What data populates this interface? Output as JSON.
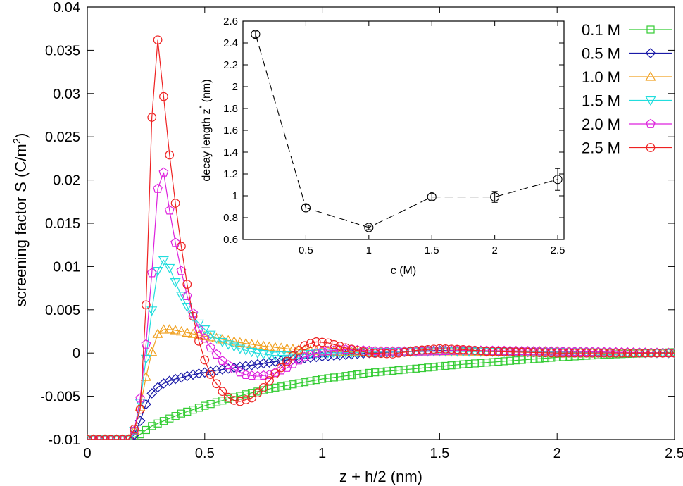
{
  "chart_data": [
    {
      "type": "line",
      "title": "",
      "xlabel": "z + h/2 (nm)",
      "ylabel_text": "screening factor S (C/m",
      "ylabel_sup": "2",
      "ylabel_end": ")",
      "xlim": [
        0,
        2.5
      ],
      "ylim": [
        -0.01,
        0.04
      ],
      "xticks": [
        0,
        0.5,
        1,
        1.5,
        2,
        2.5
      ],
      "xtick_labels": [
        "0",
        "0.5",
        "1",
        "1.5",
        "2",
        "2.5"
      ],
      "yticks": [
        -0.01,
        -0.005,
        0,
        0.005,
        0.01,
        0.015,
        0.02,
        0.025,
        0.03,
        0.035,
        0.04
      ],
      "ytick_labels": [
        "-0.01",
        "-0.005",
        "0",
        "0.005",
        "0.01",
        "0.015",
        "0.02",
        "0.025",
        "0.03",
        "0.035",
        "0.04"
      ],
      "legend_position": "top-right",
      "series": [
        {
          "name": "0.1 M",
          "color": "#33cc33",
          "marker": "square",
          "anchors": [
            [
              0,
              -0.01
            ],
            [
              0.18,
              -0.01
            ],
            [
              0.22,
              -0.0095
            ],
            [
              0.27,
              -0.0085
            ],
            [
              0.33,
              -0.0078
            ],
            [
              0.4,
              -0.007
            ],
            [
              0.5,
              -0.0061
            ],
            [
              0.6,
              -0.0053
            ],
            [
              0.7,
              -0.0046
            ],
            [
              0.8,
              -0.004
            ],
            [
              0.9,
              -0.0035
            ],
            [
              1.0,
              -0.003
            ],
            [
              1.2,
              -0.0023
            ],
            [
              1.4,
              -0.0018
            ],
            [
              1.6,
              -0.0013
            ],
            [
              1.8,
              -0.0009
            ],
            [
              2.0,
              -0.0005
            ],
            [
              2.2,
              -0.0002
            ],
            [
              2.4,
              0.0
            ],
            [
              2.5,
              0.0001
            ]
          ]
        },
        {
          "name": "0.5 M",
          "color": "#1a1aa8",
          "marker": "diamond",
          "anchors": [
            [
              0,
              -0.01
            ],
            [
              0.18,
              -0.01
            ],
            [
              0.21,
              -0.0092
            ],
            [
              0.24,
              -0.0065
            ],
            [
              0.27,
              -0.0048
            ],
            [
              0.31,
              -0.0037
            ],
            [
              0.36,
              -0.0031
            ],
            [
              0.45,
              -0.0025
            ],
            [
              0.55,
              -0.002
            ],
            [
              0.65,
              -0.0016
            ],
            [
              0.75,
              -0.0012
            ],
            [
              0.85,
              -0.0008
            ],
            [
              1.0,
              -0.0004
            ],
            [
              1.2,
              0.0
            ],
            [
              1.5,
              0.0003
            ],
            [
              1.8,
              0.0002
            ],
            [
              2.1,
              0.0001
            ],
            [
              2.5,
              0.0
            ]
          ]
        },
        {
          "name": "1.0 M",
          "color": "#f0a020",
          "marker": "triangle-up",
          "anchors": [
            [
              0,
              -0.01
            ],
            [
              0.18,
              -0.01
            ],
            [
              0.21,
              -0.0085
            ],
            [
              0.24,
              -0.004
            ],
            [
              0.27,
              -0.0003
            ],
            [
              0.3,
              0.0022
            ],
            [
              0.33,
              0.0028
            ],
            [
              0.38,
              0.0026
            ],
            [
              0.45,
              0.0022
            ],
            [
              0.55,
              0.0017
            ],
            [
              0.65,
              0.0012
            ],
            [
              0.75,
              0.0008
            ],
            [
              0.85,
              0.0005
            ],
            [
              1.0,
              0.0002
            ],
            [
              1.2,
              0.0001
            ],
            [
              1.5,
              0.0002
            ],
            [
              2.0,
              0.0001
            ],
            [
              2.5,
              0.0
            ]
          ]
        },
        {
          "name": "1.5 M",
          "color": "#22dddd",
          "marker": "triangle-down",
          "anchors": [
            [
              0,
              -0.01
            ],
            [
              0.18,
              -0.01
            ],
            [
              0.21,
              -0.0085
            ],
            [
              0.24,
              -0.003
            ],
            [
              0.27,
              0.004
            ],
            [
              0.3,
              0.0095
            ],
            [
              0.32,
              0.0108
            ],
            [
              0.34,
              0.0105
            ],
            [
              0.37,
              0.0085
            ],
            [
              0.41,
              0.006
            ],
            [
              0.46,
              0.0038
            ],
            [
              0.52,
              0.0022
            ],
            [
              0.58,
              0.0012
            ],
            [
              0.65,
              0.0005
            ],
            [
              0.72,
              0.0
            ],
            [
              0.8,
              -0.0003
            ],
            [
              0.9,
              -0.0002
            ],
            [
              1.0,
              0.0
            ],
            [
              1.2,
              0.0001
            ],
            [
              1.5,
              0.0002
            ],
            [
              2.0,
              0.0001
            ],
            [
              2.5,
              0.0
            ]
          ]
        },
        {
          "name": "2.0 M",
          "color": "#dd22dd",
          "marker": "pentagon",
          "anchors": [
            [
              0,
              -0.01
            ],
            [
              0.18,
              -0.01
            ],
            [
              0.21,
              -0.0085
            ],
            [
              0.24,
              -0.002
            ],
            [
              0.27,
              0.007
            ],
            [
              0.29,
              0.016
            ],
            [
              0.31,
              0.022
            ],
            [
              0.33,
              0.0205
            ],
            [
              0.35,
              0.0165
            ],
            [
              0.38,
              0.012
            ],
            [
              0.42,
              0.007
            ],
            [
              0.47,
              0.003
            ],
            [
              0.52,
              0.0008
            ],
            [
              0.57,
              -0.0008
            ],
            [
              0.62,
              -0.0018
            ],
            [
              0.67,
              -0.0025
            ],
            [
              0.72,
              -0.0027
            ],
            [
              0.78,
              -0.0025
            ],
            [
              0.85,
              -0.0017
            ],
            [
              0.92,
              -0.0005
            ],
            [
              1.0,
              0.0002
            ],
            [
              1.1,
              0.0004
            ],
            [
              1.25,
              0.0002
            ],
            [
              1.45,
              0.0002
            ],
            [
              1.6,
              0.0003
            ],
            [
              2.0,
              0.0002
            ],
            [
              2.5,
              0.0
            ]
          ]
        },
        {
          "name": "2.5 M",
          "color": "#ee2222",
          "marker": "circle",
          "anchors": [
            [
              0,
              -0.01
            ],
            [
              0.18,
              -0.01
            ],
            [
              0.205,
              -0.0085
            ],
            [
              0.23,
              -0.006
            ],
            [
              0.245,
              0.0002
            ],
            [
              0.26,
              0.0163
            ],
            [
              0.28,
              0.0309
            ],
            [
              0.3,
              0.0362
            ],
            [
              0.32,
              0.031
            ],
            [
              0.35,
              0.0229
            ],
            [
              0.38,
              0.0162
            ],
            [
              0.41,
              0.0104
            ],
            [
              0.44,
              0.0055
            ],
            [
              0.47,
              0.0018
            ],
            [
              0.5,
              -0.0008
            ],
            [
              0.53,
              -0.0028
            ],
            [
              0.57,
              -0.0043
            ],
            [
              0.61,
              -0.0054
            ],
            [
              0.65,
              -0.0056
            ],
            [
              0.7,
              -0.0052
            ],
            [
              0.75,
              -0.004
            ],
            [
              0.8,
              -0.0024
            ],
            [
              0.86,
              -0.0007
            ],
            [
              0.92,
              0.0008
            ],
            [
              0.97,
              0.0013
            ],
            [
              1.02,
              0.0012
            ],
            [
              1.1,
              0.0006
            ],
            [
              1.2,
              0.0
            ],
            [
              1.3,
              -0.0001
            ],
            [
              1.4,
              0.0003
            ],
            [
              1.5,
              0.0005
            ],
            [
              1.6,
              0.0004
            ],
            [
              1.7,
              0.0002
            ],
            [
              1.85,
              0.0001
            ],
            [
              2.0,
              0.0
            ],
            [
              2.5,
              0.0
            ]
          ]
        }
      ]
    },
    {
      "type": "line",
      "title": "",
      "xlabel": "c (M)",
      "ylabel_text": "decay length z",
      "ylabel_sup": "*",
      "ylabel_end": " (nm)",
      "xlim": [
        0,
        2.55
      ],
      "ylim": [
        0.6,
        2.6
      ],
      "xticks": [
        0.5,
        1,
        1.5,
        2,
        2.5
      ],
      "xtick_labels": [
        "0.5",
        "1",
        "1.5",
        "2",
        "2.5"
      ],
      "yticks": [
        0.6,
        0.8,
        1.0,
        1.2,
        1.4,
        1.6,
        1.8,
        2.0,
        2.2,
        2.4,
        2.6
      ],
      "ytick_labels": [
        "0.6",
        "0.8",
        "1",
        "1.2",
        "1.4",
        "1.6",
        "1.8",
        "2",
        "2.2",
        "2.4",
        "2.6"
      ],
      "series": [
        {
          "name": "decay length",
          "color": "#000000",
          "marker": "circle",
          "linestyle": "dashed",
          "x": [
            0.1,
            0.5,
            1.0,
            1.5,
            2.0,
            2.5
          ],
          "y": [
            2.48,
            0.89,
            0.71,
            0.99,
            0.99,
            1.15
          ],
          "err": [
            0.03,
            0.03,
            0.02,
            0.03,
            0.05,
            0.1
          ]
        }
      ]
    }
  ]
}
